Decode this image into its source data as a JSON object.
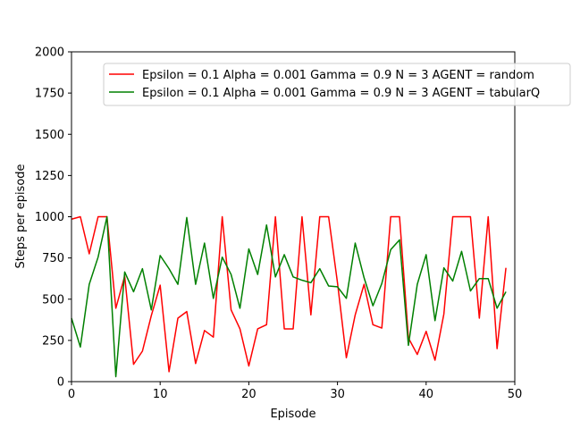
{
  "chart_data": {
    "type": "line",
    "xlabel": "Episode",
    "ylabel": "Steps per episode",
    "xlim": [
      0,
      50
    ],
    "ylim": [
      0,
      2000
    ],
    "xticks": [
      "0",
      "10",
      "20",
      "30",
      "40",
      "50"
    ],
    "yticks": [
      "0",
      "250",
      "500",
      "750",
      "1000",
      "1250",
      "1500",
      "1750",
      "2000"
    ],
    "grid": false,
    "legend_position": "upper-right",
    "x": [
      0,
      1,
      2,
      3,
      4,
      5,
      6,
      7,
      8,
      9,
      10,
      11,
      12,
      13,
      14,
      15,
      16,
      17,
      18,
      19,
      20,
      21,
      22,
      23,
      24,
      25,
      26,
      27,
      28,
      29,
      30,
      31,
      32,
      33,
      34,
      35,
      36,
      37,
      38,
      39,
      40,
      41,
      42,
      43,
      44,
      45,
      46,
      47,
      48,
      49
    ],
    "series": [
      {
        "name": "Epsilon = 0.1 Alpha = 0.001 Gamma = 0.9 N = 3 AGENT = random",
        "color": "#ff0000",
        "values": [
          985,
          1000,
          775,
          1000,
          1000,
          445,
          640,
          105,
          185,
          400,
          585,
          60,
          385,
          425,
          110,
          310,
          270,
          1000,
          435,
          320,
          95,
          320,
          345,
          1000,
          320,
          320,
          1000,
          405,
          1000,
          1000,
          600,
          145,
          405,
          590,
          345,
          325,
          1000,
          1000,
          265,
          165,
          305,
          130,
          410,
          1000,
          1000,
          1000,
          385,
          1000,
          200,
          690
        ]
      },
      {
        "name": "Epsilon = 0.1 Alpha = 0.001 Gamma = 0.9 N = 3 AGENT = tabularQ",
        "color": "#008000",
        "values": [
          385,
          210,
          590,
          755,
          1000,
          30,
          665,
          545,
          685,
          435,
          765,
          685,
          590,
          995,
          590,
          840,
          505,
          755,
          650,
          445,
          805,
          650,
          950,
          635,
          770,
          635,
          615,
          600,
          685,
          580,
          575,
          505,
          840,
          630,
          460,
          595,
          800,
          860,
          220,
          590,
          770,
          370,
          690,
          610,
          790,
          550,
          625,
          625,
          445,
          545
        ]
      }
    ]
  }
}
